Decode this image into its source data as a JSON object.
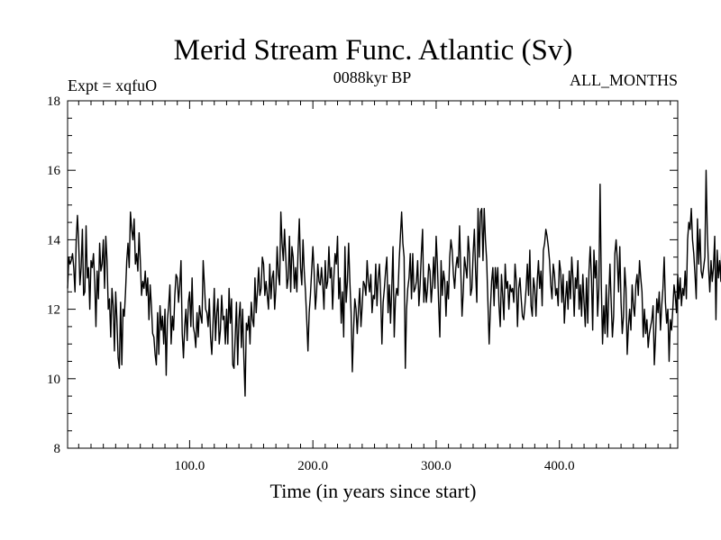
{
  "chart_data": {
    "type": "line",
    "title": "Merid Stream Func. Atlantic (Sv)",
    "subtitle_left": "Expt = xqfuO",
    "subtitle_center": "0088kyr BP",
    "subtitle_right": "ALL_MONTHS",
    "xlabel": "Time (in years since start)",
    "ylabel": "",
    "xlim": [
      1,
      496
    ],
    "ylim": [
      8,
      18
    ],
    "x_ticks": [
      100,
      200,
      300,
      400
    ],
    "x_tick_labels": [
      "100.0",
      "200.0",
      "300.0",
      "400.0"
    ],
    "y_ticks": [
      8,
      10,
      12,
      14,
      16,
      18
    ],
    "y_tick_labels": [
      "8",
      "10",
      "12",
      "14",
      "16",
      "18"
    ],
    "grid": false,
    "series": [
      {
        "name": "Merid Stream Func. Atlantic",
        "color": "#000000",
        "x_start": 1,
        "x_step": 1,
        "values": [
          12.6,
          13.5,
          13.3,
          13.4,
          13.6,
          13.2,
          12.5,
          14.0,
          14.7,
          13.9,
          12.7,
          13.2,
          14.3,
          12.4,
          12.5,
          14.4,
          12.9,
          13.2,
          12.0,
          13.4,
          13.2,
          13.6,
          12.8,
          11.5,
          13.1,
          12.3,
          13.9,
          13.1,
          13.3,
          14.0,
          12.6,
          14.1,
          13.4,
          12.0,
          12.3,
          11.2,
          12.6,
          12.1,
          10.8,
          12.5,
          11.7,
          10.6,
          10.3,
          12.2,
          10.4,
          12.0,
          11.8,
          12.5,
          13.4,
          13.9,
          13.2,
          14.8,
          14.3,
          14.0,
          14.6,
          13.3,
          13.6,
          13.1,
          14.2,
          13.4,
          12.4,
          12.8,
          12.6,
          13.1,
          12.4,
          12.9,
          11.7,
          12.7,
          12.1,
          11.3,
          11.2,
          10.7,
          10.4,
          11.9,
          10.7,
          12.1,
          11.4,
          11.8,
          11.0,
          12.0,
          10.1,
          11.7,
          12.1,
          12.7,
          11.0,
          11.8,
          11.4,
          12.4,
          13.0,
          12.9,
          12.2,
          12.7,
          13.4,
          11.3,
          10.6,
          11.5,
          12.0,
          11.1,
          12.2,
          12.5,
          11.5,
          12.9,
          11.5,
          11.3,
          10.9,
          11.9,
          11.2,
          12.1,
          11.8,
          11.6,
          13.4,
          12.7,
          12.0,
          11.9,
          11.5,
          12.3,
          11.2,
          10.7,
          11.6,
          12.6,
          11.1,
          11.9,
          12.3,
          11.0,
          11.4,
          12.4,
          11.7,
          11.8,
          11.0,
          12.0,
          11.0,
          12.6,
          11.6,
          12.3,
          10.4,
          10.3,
          11.2,
          12.2,
          10.4,
          11.7,
          12.2,
          10.9,
          12.0,
          10.6,
          9.5,
          11.6,
          11.4,
          11.8,
          11.0,
          12.2,
          11.7,
          11.5,
          12.9,
          11.9,
          12.5,
          13.2,
          12.4,
          12.6,
          13.5,
          13.3,
          12.4,
          12.8,
          12.4,
          12.0,
          13.3,
          12.3,
          12.9,
          13.1,
          12.0,
          12.6,
          13.8,
          13.0,
          12.7,
          14.8,
          13.9,
          13.4,
          14.3,
          13.5,
          12.6,
          12.9,
          14.1,
          12.5,
          13.8,
          13.5,
          12.6,
          13.2,
          12.5,
          13.7,
          14.6,
          13.2,
          12.7,
          14.0,
          13.1,
          12.5,
          11.7,
          10.8,
          11.9,
          12.4,
          13.1,
          13.8,
          13.1,
          12.0,
          12.5,
          13.3,
          12.8,
          12.7,
          13.2,
          12.7,
          12.0,
          13.4,
          12.6,
          12.8,
          13.8,
          12.9,
          13.2,
          12.0,
          12.9,
          13.6,
          13.3,
          14.1,
          12.3,
          12.9,
          11.6,
          12.5,
          11.2,
          13.8,
          12.2,
          12.8,
          13.9,
          12.8,
          11.9,
          10.2,
          11.4,
          12.3,
          12.0,
          11.3,
          12.0,
          12.6,
          11.5,
          12.1,
          12.8,
          12.7,
          12.4,
          13.4,
          12.8,
          12.5,
          13.0,
          11.9,
          12.4,
          12.3,
          13.3,
          12.1,
          12.9,
          13.3,
          12.4,
          11.0,
          12.2,
          12.6,
          13.1,
          13.5,
          11.9,
          12.7,
          11.6,
          12.6,
          13.8,
          11.2,
          12.3,
          12.6,
          12.4,
          13.4,
          14.1,
          14.8,
          13.9,
          13.5,
          10.3,
          12.0,
          12.6,
          12.9,
          13.6,
          12.3,
          13.6,
          12.5,
          12.6,
          12.8,
          13.4,
          12.1,
          12.7,
          13.6,
          14.3,
          12.2,
          12.9,
          12.2,
          12.6,
          13.3,
          13.1,
          12.2,
          12.7,
          13.5,
          12.6,
          14.1,
          13.3,
          12.2,
          11.2,
          13.4,
          12.4,
          13.1,
          12.8,
          11.8,
          12.8,
          12.3,
          13.5,
          14.0,
          13.7,
          13.0,
          12.6,
          13.2,
          13.5,
          13.2,
          14.4,
          13.1,
          11.8,
          12.5,
          13.5,
          13.2,
          12.9,
          14.1,
          13.6,
          12.4,
          12.6,
          13.6,
          14.3,
          13.1,
          12.2,
          14.9,
          13.5,
          14.8,
          14.9,
          13.4,
          14.9,
          14.0,
          13.4,
          12.2,
          11.0,
          12.0,
          12.8,
          13.2,
          12.1,
          13.2,
          12.6,
          13.2,
          12.1,
          11.5,
          13.0,
          12.4,
          11.7,
          13.3,
          12.6,
          12.8,
          12.0,
          12.7,
          12.5,
          12.6,
          12.2,
          13.3,
          12.8,
          11.5,
          12.6,
          12.9,
          12.3,
          11.8,
          11.7,
          12.1,
          12.6,
          13.3,
          12.4,
          13.7,
          12.1,
          11.8,
          12.9,
          12.6,
          11.8,
          12.8,
          13.4,
          12.6,
          13.1,
          12.1,
          13.7,
          13.9,
          14.3,
          14.1,
          13.8,
          13.4,
          12.7,
          12.3,
          13.3,
          13.0,
          12.4,
          12.6,
          12.1,
          13.4,
          13.1,
          12.2,
          13.0,
          11.6,
          12.3,
          12.8,
          12.0,
          13.1,
          12.3,
          13.5,
          12.9,
          11.8,
          12.9,
          12.6,
          13.4,
          12.0,
          12.7,
          11.8,
          13.0,
          12.2,
          11.5,
          12.9,
          11.6,
          13.1,
          13.8,
          12.9,
          11.4,
          13.7,
          12.9,
          13.4,
          11.8,
          12.6,
          15.6,
          12.7,
          11.0,
          12.1,
          11.3,
          12.7,
          11.2,
          12.3,
          13.3,
          12.2,
          11.2,
          11.8,
          13.6,
          14.0,
          13.4,
          12.5,
          13.8,
          12.2,
          11.3,
          11.8,
          13.2,
          12.6,
          10.7,
          11.5,
          12.0,
          11.4,
          12.7,
          12.1,
          11.8,
          12.7,
          13.0,
          12.4,
          13.4,
          12.9,
          12.5,
          11.2,
          12.0,
          11.3,
          11.7,
          10.9,
          11.3,
          11.5,
          11.7,
          12.1,
          10.4,
          11.2,
          12.3,
          11.9,
          12.5,
          11.4,
          12.1,
          12.6,
          13.5,
          12.2,
          11.6,
          12.0,
          10.5,
          11.7,
          11.4,
          12.0,
          12.7,
          12.4,
          11.9,
          13.0,
          12.3,
          12.9,
          12.1,
          12.6,
          12.4,
          13.1,
          12.3,
          14.0,
          14.5,
          14.3,
          14.9,
          14.0,
          13.6,
          13.0,
          12.3,
          14.6,
          13.3,
          14.3,
          13.1,
          12.9,
          13.2,
          13.5,
          16.0,
          14.2,
          13.2,
          12.5,
          13.4,
          12.8,
          13.2,
          14.1,
          11.7,
          13.7,
          12.9,
          13.4,
          12.8,
          14.2,
          13.1,
          13.0,
          13.3,
          12.7,
          13.4,
          14.0,
          13.3
        ]
      }
    ]
  }
}
